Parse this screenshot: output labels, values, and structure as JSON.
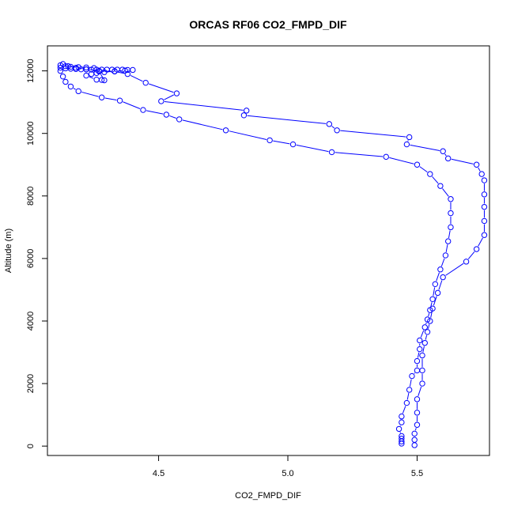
{
  "chart_data": {
    "type": "scatter",
    "title": "ORCAS RF06 CO2_FMPD_DIF",
    "xlabel": "CO2_FMPD_DIF",
    "ylabel": "Altitude (m)",
    "xlim": [
      4.07,
      5.78
    ],
    "ylim": [
      -300,
      12800
    ],
    "xticks": [
      4.5,
      5.0,
      5.5
    ],
    "xtick_labels": [
      "4.5",
      "5.0",
      "5.5"
    ],
    "yticks": [
      0,
      2000,
      4000,
      6000,
      8000,
      10000,
      12000
    ],
    "ytick_labels": [
      "0",
      "2000",
      "4000",
      "6000",
      "8000",
      "10000",
      "12000"
    ],
    "grid": false,
    "legend": "none",
    "marker": "open-circle",
    "line_style": "connected",
    "color": "#0000ff",
    "series": [
      {
        "points": [
          [
            5.44,
            80
          ],
          [
            5.44,
            150
          ],
          [
            5.44,
            240
          ],
          [
            5.44,
            320
          ],
          [
            5.43,
            550
          ],
          [
            5.44,
            760
          ],
          [
            5.44,
            950
          ],
          [
            5.46,
            1380
          ],
          [
            5.47,
            1800
          ],
          [
            5.48,
            2240
          ],
          [
            5.5,
            2420
          ],
          [
            5.5,
            2720
          ],
          [
            5.51,
            3100
          ],
          [
            5.51,
            3380
          ],
          [
            5.53,
            3800
          ],
          [
            5.54,
            4050
          ],
          [
            5.55,
            4350
          ],
          [
            5.56,
            4700
          ],
          [
            5.57,
            5180
          ],
          [
            5.59,
            5650
          ],
          [
            5.61,
            6100
          ],
          [
            5.62,
            6550
          ],
          [
            5.63,
            7000
          ],
          [
            5.63,
            7450
          ],
          [
            5.63,
            7900
          ],
          [
            5.59,
            8320
          ],
          [
            5.55,
            8700
          ],
          [
            5.5,
            9000
          ],
          [
            5.38,
            9250
          ],
          [
            5.17,
            9400
          ],
          [
            5.02,
            9650
          ],
          [
            4.93,
            9780
          ],
          [
            4.76,
            10100
          ],
          [
            4.58,
            10450
          ],
          [
            4.53,
            10600
          ],
          [
            4.44,
            10750
          ],
          [
            4.35,
            11050
          ],
          [
            4.28,
            11150
          ],
          [
            4.19,
            11350
          ],
          [
            4.16,
            11500
          ],
          [
            4.14,
            11650
          ],
          [
            4.13,
            11820
          ],
          [
            4.12,
            12000
          ],
          [
            4.12,
            12100
          ],
          [
            4.12,
            12180
          ],
          [
            4.13,
            12220
          ]
        ]
      },
      {
        "points": [
          [
            5.49,
            30
          ],
          [
            5.49,
            200
          ],
          [
            5.49,
            400
          ],
          [
            5.5,
            680
          ],
          [
            5.5,
            1070
          ],
          [
            5.5,
            1500
          ],
          [
            5.52,
            2000
          ],
          [
            5.52,
            2420
          ],
          [
            5.52,
            2900
          ],
          [
            5.53,
            3300
          ],
          [
            5.54,
            3650
          ],
          [
            5.55,
            4000
          ],
          [
            5.56,
            4400
          ],
          [
            5.58,
            4900
          ],
          [
            5.6,
            5400
          ],
          [
            5.69,
            5900
          ],
          [
            5.73,
            6300
          ],
          [
            5.76,
            6750
          ],
          [
            5.76,
            7200
          ],
          [
            5.76,
            7650
          ],
          [
            5.76,
            8050
          ],
          [
            5.76,
            8500
          ],
          [
            5.75,
            8700
          ],
          [
            5.73,
            9000
          ],
          [
            5.62,
            9200
          ],
          [
            5.6,
            9430
          ],
          [
            5.46,
            9650
          ],
          [
            5.47,
            9880
          ],
          [
            5.19,
            10100
          ],
          [
            5.16,
            10300
          ],
          [
            4.83,
            10580
          ],
          [
            4.84,
            10730
          ],
          [
            4.51,
            11030
          ],
          [
            4.57,
            11280
          ],
          [
            4.45,
            11620
          ],
          [
            4.38,
            11900
          ],
          [
            4.33,
            11980
          ],
          [
            4.27,
            12000
          ],
          [
            4.22,
            12050
          ],
          [
            4.18,
            12100
          ],
          [
            4.15,
            12150
          ]
        ]
      },
      {
        "points": [
          [
            4.14,
            12080
          ],
          [
            4.16,
            12070
          ],
          [
            4.18,
            12060
          ],
          [
            4.2,
            12050
          ],
          [
            4.22,
            12050
          ],
          [
            4.24,
            12040
          ],
          [
            4.26,
            12040
          ],
          [
            4.28,
            12040
          ],
          [
            4.3,
            12040
          ],
          [
            4.32,
            12040
          ],
          [
            4.34,
            12040
          ],
          [
            4.36,
            12040
          ],
          [
            4.38,
            12030
          ],
          [
            4.4,
            12030
          ],
          [
            4.37,
            12010
          ],
          [
            4.33,
            11990
          ],
          [
            4.29,
            11960
          ],
          [
            4.26,
            11930
          ],
          [
            4.24,
            11900
          ],
          [
            4.22,
            11850
          ],
          [
            4.26,
            11720
          ],
          [
            4.28,
            11710
          ],
          [
            4.29,
            11700
          ],
          [
            4.27,
            11980
          ],
          [
            4.25,
            12090
          ],
          [
            4.22,
            12110
          ],
          [
            4.19,
            12120
          ],
          [
            4.16,
            12130
          ],
          [
            4.14,
            12150
          ]
        ]
      }
    ]
  }
}
